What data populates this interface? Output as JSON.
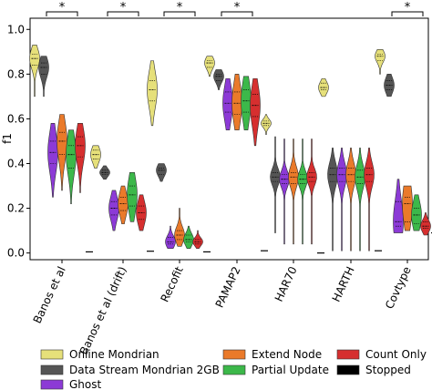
{
  "chart_data": {
    "type": "violin",
    "ylabel": "f1",
    "ylim": [
      -0.03,
      1.05
    ],
    "yticks": [
      0.0,
      0.2,
      0.4,
      0.6,
      0.8,
      1.0
    ],
    "ytick_labels": [
      "0.0",
      "0.2",
      "0.4",
      "0.6",
      "0.8",
      "1.0"
    ],
    "categories": [
      "Banos et al",
      "Banos et al (drift)",
      "Recofit",
      "PAMAP2",
      "HAR70",
      "HARTH",
      "Covtype"
    ],
    "significance": [
      "*",
      "*",
      "*",
      "*",
      "",
      "",
      "*"
    ],
    "colors": {
      "Online Mondrian": "#e6e07a",
      "Data Stream Mondrian 2GB": "#555555",
      "Ghost": "#8c3ad6",
      "Extend Node": "#ea7a2a",
      "Partial Update": "#3cb84a",
      "Count Only": "#d62f2f",
      "Stopped": "#000000"
    },
    "legend": [
      "Online Mondrian",
      "Data Stream Mondrian 2GB",
      "Ghost",
      "Extend Node",
      "Partial Update",
      "Count Only",
      "Stopped"
    ],
    "series_order": [
      "Online Mondrian",
      "Data Stream Mondrian 2GB",
      "Ghost",
      "Extend Node",
      "Partial Update",
      "Count Only",
      "Stopped"
    ],
    "violins": {
      "Banos et al": [
        {
          "median": 0.87,
          "q1": 0.84,
          "q3": 0.89,
          "min": 0.7,
          "max": 0.93
        },
        {
          "median": 0.83,
          "q1": 0.8,
          "q3": 0.85,
          "min": 0.7,
          "max": 0.88
        },
        {
          "median": 0.45,
          "q1": 0.4,
          "q3": 0.5,
          "min": 0.25,
          "max": 0.58
        },
        {
          "median": 0.5,
          "q1": 0.44,
          "q3": 0.54,
          "min": 0.28,
          "max": 0.62
        },
        {
          "median": 0.44,
          "q1": 0.38,
          "q3": 0.48,
          "min": 0.22,
          "max": 0.55
        },
        {
          "median": 0.48,
          "q1": 0.43,
          "q3": 0.52,
          "min": 0.27,
          "max": 0.58
        },
        {
          "median": 0.005,
          "q1": 0.005,
          "q3": 0.005,
          "min": 0.005,
          "max": 0.005
        }
      ],
      "Banos et al (drift)": [
        {
          "median": 0.44,
          "q1": 0.42,
          "q3": 0.46,
          "min": 0.38,
          "max": 0.48
        },
        {
          "median": 0.36,
          "q1": 0.35,
          "q3": 0.37,
          "min": 0.33,
          "max": 0.39
        },
        {
          "median": 0.2,
          "q1": 0.17,
          "q3": 0.23,
          "min": 0.1,
          "max": 0.28
        },
        {
          "median": 0.22,
          "q1": 0.19,
          "q3": 0.25,
          "min": 0.13,
          "max": 0.3
        },
        {
          "median": 0.26,
          "q1": 0.21,
          "q3": 0.3,
          "min": 0.14,
          "max": 0.36
        },
        {
          "median": 0.18,
          "q1": 0.15,
          "q3": 0.21,
          "min": 0.1,
          "max": 0.26
        },
        {
          "median": 0.008,
          "q1": 0.008,
          "q3": 0.008,
          "min": 0.008,
          "max": 0.008
        }
      ],
      "Recofit": [
        {
          "median": 0.73,
          "q1": 0.68,
          "q3": 0.77,
          "min": 0.57,
          "max": 0.86
        },
        {
          "median": 0.37,
          "q1": 0.35,
          "q3": 0.38,
          "min": 0.32,
          "max": 0.4
        },
        {
          "median": 0.05,
          "q1": 0.04,
          "q3": 0.07,
          "min": 0.02,
          "max": 0.12
        },
        {
          "median": 0.08,
          "q1": 0.06,
          "q3": 0.1,
          "min": 0.03,
          "max": 0.2
        },
        {
          "median": 0.06,
          "q1": 0.05,
          "q3": 0.08,
          "min": 0.02,
          "max": 0.12
        },
        {
          "median": 0.05,
          "q1": 0.04,
          "q3": 0.06,
          "min": 0.02,
          "max": 0.1
        },
        {
          "median": 0.005,
          "q1": 0.005,
          "q3": 0.005,
          "min": 0.005,
          "max": 0.005
        }
      ],
      "PAMAP2": [
        {
          "median": 0.85,
          "q1": 0.83,
          "q3": 0.86,
          "min": 0.79,
          "max": 0.88
        },
        {
          "median": 0.79,
          "q1": 0.77,
          "q3": 0.8,
          "min": 0.73,
          "max": 0.82
        },
        {
          "median": 0.67,
          "q1": 0.63,
          "q3": 0.72,
          "min": 0.55,
          "max": 0.78
        },
        {
          "median": 0.67,
          "q1": 0.62,
          "q3": 0.72,
          "min": 0.55,
          "max": 0.8
        },
        {
          "median": 0.68,
          "q1": 0.63,
          "q3": 0.73,
          "min": 0.55,
          "max": 0.79
        },
        {
          "median": 0.66,
          "q1": 0.61,
          "q3": 0.71,
          "min": 0.48,
          "max": 0.78
        },
        {
          "median": 0.01,
          "q1": 0.01,
          "q3": 0.01,
          "min": 0.01,
          "max": 0.01
        }
      ],
      "HAR70": [
        {
          "median": 0.58,
          "q1": 0.57,
          "q3": 0.59,
          "min": 0.53,
          "max": 0.62
        },
        {
          "median": 0.34,
          "q1": 0.32,
          "q3": 0.36,
          "min": 0.09,
          "max": 0.52
        },
        {
          "median": 0.33,
          "q1": 0.31,
          "q3": 0.35,
          "min": 0.04,
          "max": 0.51
        },
        {
          "median": 0.34,
          "q1": 0.31,
          "q3": 0.36,
          "min": 0.04,
          "max": 0.51
        },
        {
          "median": 0.33,
          "q1": 0.31,
          "q3": 0.35,
          "min": 0.04,
          "max": 0.51
        },
        {
          "median": 0.34,
          "q1": 0.32,
          "q3": 0.36,
          "min": 0.04,
          "max": 0.51
        },
        {
          "median": 0.0,
          "q1": 0.0,
          "q3": 0.0,
          "min": 0.0,
          "max": 0.0
        }
      ],
      "HARTH": [
        {
          "median": 0.74,
          "q1": 0.73,
          "q3": 0.76,
          "min": 0.7,
          "max": 0.78
        },
        {
          "median": 0.35,
          "q1": 0.32,
          "q3": 0.38,
          "min": 0.01,
          "max": 0.47
        },
        {
          "median": 0.35,
          "q1": 0.32,
          "q3": 0.38,
          "min": 0.01,
          "max": 0.47
        },
        {
          "median": 0.35,
          "q1": 0.32,
          "q3": 0.38,
          "min": 0.01,
          "max": 0.47
        },
        {
          "median": 0.34,
          "q1": 0.31,
          "q3": 0.37,
          "min": 0.01,
          "max": 0.47
        },
        {
          "median": 0.35,
          "q1": 0.32,
          "q3": 0.38,
          "min": 0.01,
          "max": 0.47
        },
        {
          "median": 0.01,
          "q1": 0.01,
          "q3": 0.01,
          "min": 0.01,
          "max": 0.01
        }
      ],
      "Covtype": [
        {
          "median": 0.88,
          "q1": 0.86,
          "q3": 0.89,
          "min": 0.8,
          "max": 0.91
        },
        {
          "median": 0.75,
          "q1": 0.73,
          "q3": 0.77,
          "min": 0.7,
          "max": 0.8
        },
        {
          "median": 0.14,
          "q1": 0.12,
          "q3": 0.23,
          "min": 0.09,
          "max": 0.33
        },
        {
          "median": 0.22,
          "q1": 0.14,
          "q3": 0.25,
          "min": 0.1,
          "max": 0.3
        },
        {
          "median": 0.17,
          "q1": 0.13,
          "q3": 0.2,
          "min": 0.1,
          "max": 0.26
        },
        {
          "median": 0.12,
          "q1": 0.11,
          "q3": 0.14,
          "min": 0.08,
          "max": 0.18
        },
        {
          "median": 0.09,
          "q1": 0.09,
          "q3": 0.09,
          "min": 0.09,
          "max": 0.09
        }
      ]
    }
  }
}
